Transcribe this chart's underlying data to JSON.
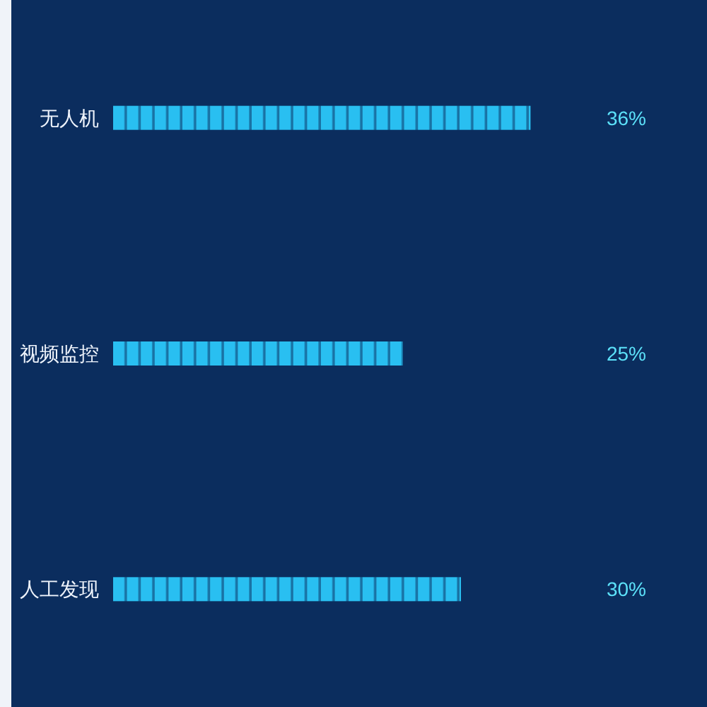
{
  "chart_data": {
    "type": "bar",
    "orientation": "horizontal",
    "categories": [
      "无人机",
      "视频监控",
      "人工发现"
    ],
    "values": [
      36,
      25,
      30
    ],
    "value_labels": [
      "36%",
      "25%",
      "30%"
    ],
    "color": "#29bff1",
    "tick_labels": "y"
  }
}
